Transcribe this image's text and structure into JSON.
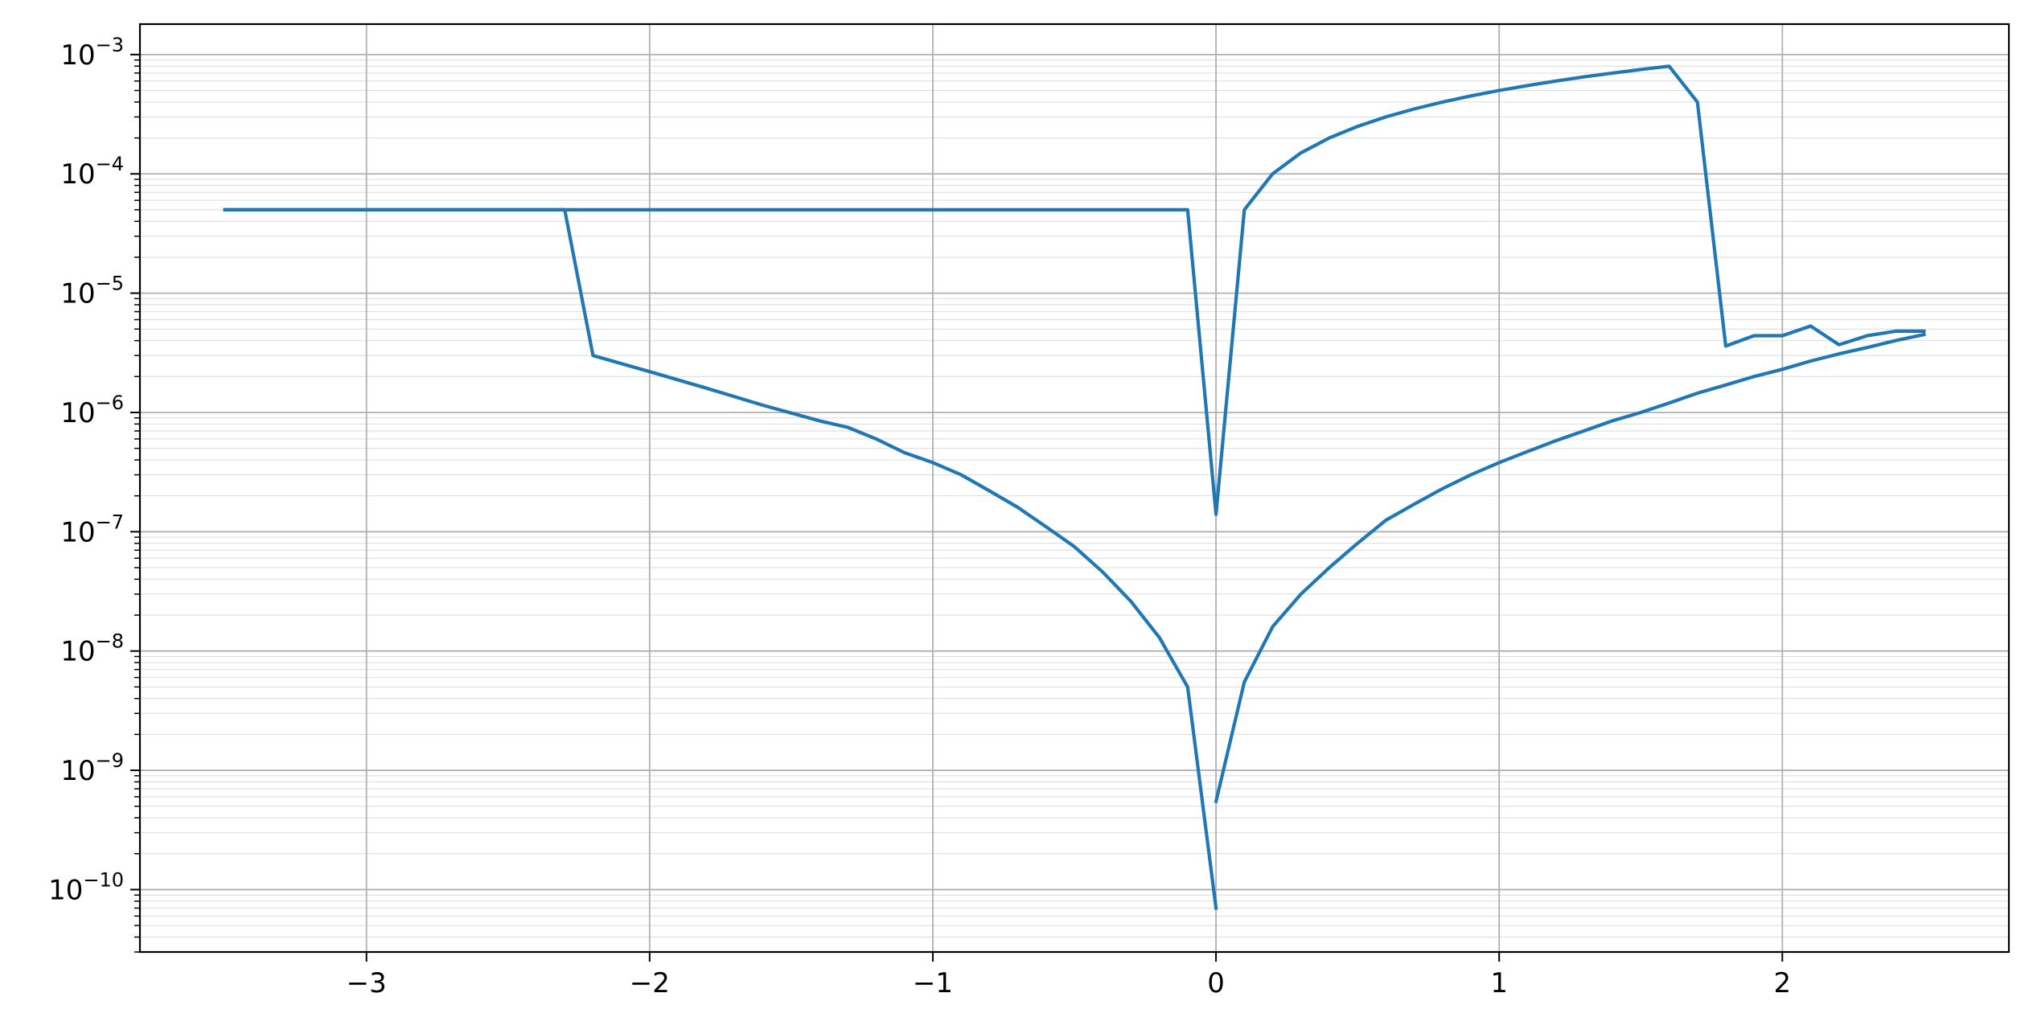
{
  "chart_data": {
    "type": "line",
    "title": "",
    "xlabel": "",
    "ylabel": "",
    "xlim": [
      -3.8,
      2.8
    ],
    "ylim": [
      3e-11,
      0.0018
    ],
    "yscale": "log",
    "grid": {
      "major": true,
      "minor_y": true
    },
    "legend": "none",
    "x_ticks": [
      {
        "value": -3,
        "label": "−3"
      },
      {
        "value": -2,
        "label": "−2"
      },
      {
        "value": -1,
        "label": "−1"
      },
      {
        "value": 0,
        "label": "0"
      },
      {
        "value": 1,
        "label": "1"
      },
      {
        "value": 2,
        "label": "2"
      }
    ],
    "y_ticks": [
      {
        "value": 1e-10,
        "base": "10",
        "exp": "−10"
      },
      {
        "value": 1e-09,
        "base": "10",
        "exp": "−9"
      },
      {
        "value": 1e-08,
        "base": "10",
        "exp": "−8"
      },
      {
        "value": 1e-07,
        "base": "10",
        "exp": "−7"
      },
      {
        "value": 1e-06,
        "base": "10",
        "exp": "−6"
      },
      {
        "value": 1e-05,
        "base": "10",
        "exp": "−5"
      },
      {
        "value": 0.0001,
        "base": "10",
        "exp": "−4"
      },
      {
        "value": 0.001,
        "base": "10",
        "exp": "−3"
      }
    ],
    "series": [
      {
        "color": "#1f77b4",
        "points": [
          [
            -3.5,
            5e-05
          ],
          [
            -2.3,
            5e-05
          ],
          [
            -2.2,
            3e-06
          ],
          [
            -2.0,
            2.2e-06
          ],
          [
            -1.8,
            1.6e-06
          ],
          [
            -1.6,
            1.15e-06
          ],
          [
            -1.4,
            8.5e-07
          ],
          [
            -1.3,
            7.5e-07
          ],
          [
            -1.2,
            6e-07
          ],
          [
            -1.1,
            4.6e-07
          ],
          [
            -1.0,
            3.8e-07
          ],
          [
            -0.9,
            3e-07
          ],
          [
            -0.8,
            2.2e-07
          ],
          [
            -0.7,
            1.6e-07
          ],
          [
            -0.6,
            1.1e-07
          ],
          [
            -0.5,
            7.5e-08
          ],
          [
            -0.4,
            4.6e-08
          ],
          [
            -0.3,
            2.6e-08
          ],
          [
            -0.2,
            1.3e-08
          ],
          [
            -0.1,
            5e-09
          ],
          [
            0.0,
            7e-11
          ]
        ]
      },
      {
        "color": "#1f77b4",
        "points": [
          [
            0.0,
            5.5e-10
          ],
          [
            0.1,
            5.5e-09
          ],
          [
            0.2,
            1.6e-08
          ],
          [
            0.3,
            3e-08
          ],
          [
            0.4,
            5e-08
          ],
          [
            0.5,
            8e-08
          ],
          [
            0.6,
            1.25e-07
          ],
          [
            0.7,
            1.7e-07
          ],
          [
            0.8,
            2.3e-07
          ],
          [
            0.9,
            3e-07
          ],
          [
            1.0,
            3.8e-07
          ],
          [
            1.1,
            4.7e-07
          ],
          [
            1.2,
            5.8e-07
          ],
          [
            1.3,
            7e-07
          ],
          [
            1.4,
            8.5e-07
          ],
          [
            1.5,
            1e-06
          ],
          [
            1.6,
            1.2e-06
          ],
          [
            1.7,
            1.45e-06
          ],
          [
            1.8,
            1.7e-06
          ],
          [
            1.9,
            2e-06
          ],
          [
            2.0,
            2.3e-06
          ],
          [
            2.1,
            2.7e-06
          ],
          [
            2.2,
            3.1e-06
          ],
          [
            2.3,
            3.5e-06
          ],
          [
            2.4,
            4e-06
          ],
          [
            2.5,
            4.5e-06
          ]
        ]
      },
      {
        "color": "#1f77b4",
        "points": [
          [
            -3.5,
            5e-05
          ],
          [
            -0.1,
            5e-05
          ],
          [
            0.0,
            1.4e-07
          ],
          [
            0.1,
            5e-05
          ],
          [
            0.2,
            0.0001
          ],
          [
            0.3,
            0.00015
          ],
          [
            0.4,
            0.0002
          ],
          [
            0.5,
            0.00025
          ],
          [
            0.6,
            0.0003
          ],
          [
            0.7,
            0.00035
          ],
          [
            0.8,
            0.0004
          ],
          [
            0.9,
            0.00045
          ],
          [
            1.0,
            0.0005
          ],
          [
            1.1,
            0.00055
          ],
          [
            1.2,
            0.0006
          ],
          [
            1.3,
            0.00065
          ],
          [
            1.4,
            0.0007
          ],
          [
            1.5,
            0.00075
          ],
          [
            1.6,
            0.0008
          ],
          [
            1.7,
            0.0004
          ],
          [
            1.8,
            3.6e-06
          ],
          [
            1.9,
            4.4e-06
          ],
          [
            2.0,
            4.4e-06
          ],
          [
            2.1,
            5.3e-06
          ],
          [
            2.2,
            3.7e-06
          ],
          [
            2.3,
            4.4e-06
          ],
          [
            2.4,
            4.8e-06
          ],
          [
            2.5,
            4.8e-06
          ]
        ]
      }
    ]
  }
}
